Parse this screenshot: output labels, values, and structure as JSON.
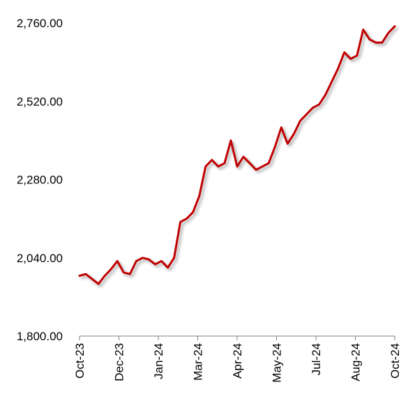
{
  "chart_data": {
    "type": "line",
    "title": "",
    "xlabel": "",
    "ylabel": "",
    "ylim": [
      1800,
      2760
    ],
    "y_ticks": [
      {
        "value": 1800,
        "label": "1,800.00"
      },
      {
        "value": 2040,
        "label": "2,040.00"
      },
      {
        "value": 2280,
        "label": "2,280.00"
      },
      {
        "value": 2520,
        "label": "2,520.00"
      },
      {
        "value": 2760,
        "label": "2,760.00"
      }
    ],
    "x_ticks": [
      "Oct-23",
      "Dec-23",
      "Jan-24",
      "Mar-24",
      "Apr-24",
      "May-24",
      "Jul-24",
      "Aug-24",
      "Oct-24"
    ],
    "grid": false,
    "legend": "none",
    "line_color": "#C00000",
    "series": [
      {
        "x": [
          0,
          0.02,
          0.04,
          0.06,
          0.08,
          0.1,
          0.12,
          0.14,
          0.16,
          0.18,
          0.2,
          0.22,
          0.24,
          0.26,
          0.28,
          0.3,
          0.32,
          0.34,
          0.36,
          0.38,
          0.4,
          0.42,
          0.44,
          0.46,
          0.48,
          0.5,
          0.52,
          0.54,
          0.56,
          0.58,
          0.6,
          0.62,
          0.64,
          0.66,
          0.68,
          0.7,
          0.72,
          0.74,
          0.76,
          0.78,
          0.8,
          0.82,
          0.84,
          0.86,
          0.88,
          0.9,
          0.92,
          0.94,
          0.96,
          0.98,
          1
        ],
        "values": [
          1985,
          1990,
          1975,
          1960,
          1985,
          2005,
          2030,
          1995,
          1990,
          2030,
          2040,
          2035,
          2020,
          2030,
          2010,
          2040,
          2150,
          2160,
          2180,
          2230,
          2320,
          2340,
          2320,
          2330,
          2400,
          2320,
          2350,
          2330,
          2310,
          2320,
          2330,
          2380,
          2440,
          2390,
          2420,
          2460,
          2480,
          2500,
          2510,
          2540,
          2580,
          2620,
          2670,
          2650,
          2660,
          2740,
          2710,
          2700,
          2700,
          2730,
          2750
        ]
      }
    ]
  }
}
